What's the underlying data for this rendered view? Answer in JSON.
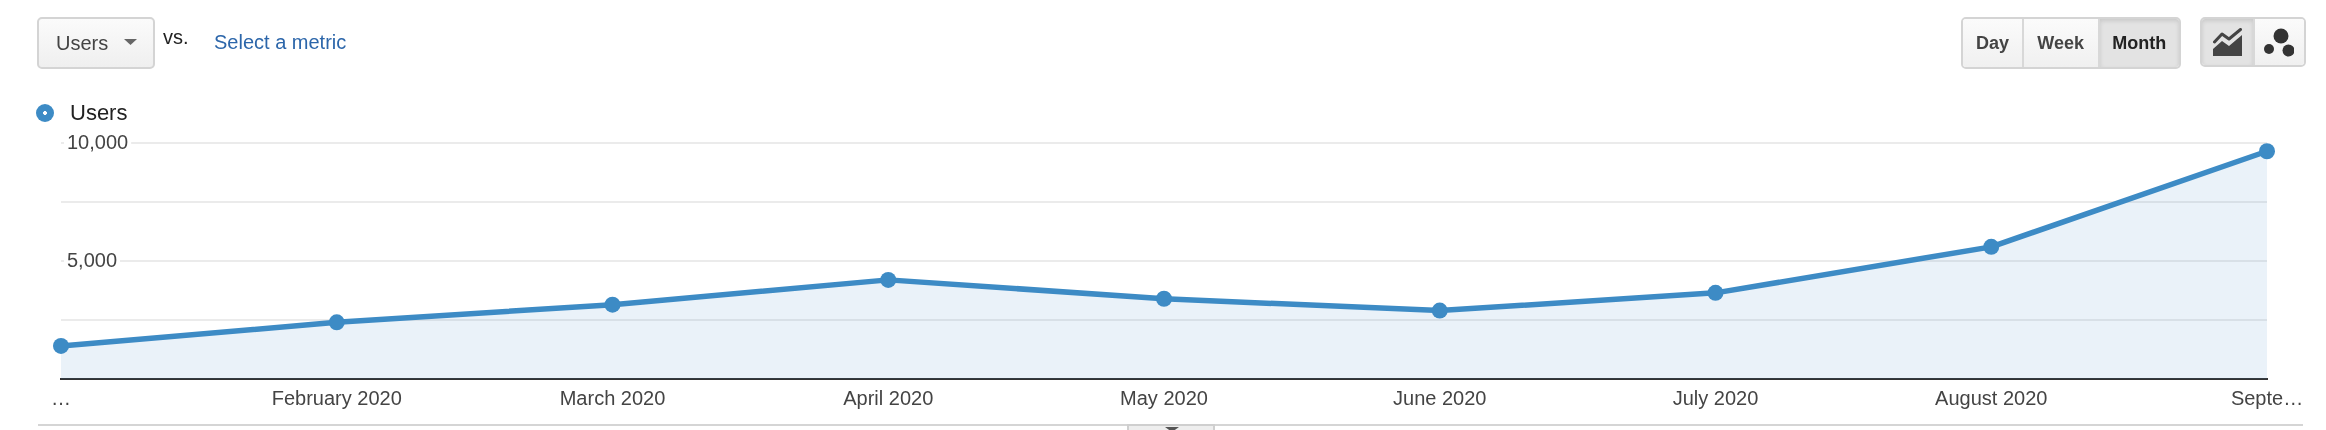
{
  "chart_data": {
    "type": "area",
    "categories": [
      "…",
      "February 2020",
      "March 2020",
      "April 2020",
      "May 2020",
      "June 2020",
      "July 2020",
      "August 2020",
      "Septe…"
    ],
    "series": [
      {
        "name": "Users",
        "color": "#3d8bc5",
        "values": [
          1400,
          2400,
          3150,
          4200,
          3400,
          2900,
          3650,
          5600,
          9650
        ]
      }
    ],
    "ylim": [
      0,
      10000
    ],
    "yticks": [
      {
        "value": 2500,
        "label": null
      },
      {
        "value": 5000,
        "label": "5,000"
      },
      {
        "value": 7500,
        "label": null
      },
      {
        "value": 10000,
        "label": "10,000"
      }
    ],
    "grid": "y",
    "legend": "top left",
    "marker": "circle",
    "annotations": [
      "Users",
      "vs.",
      "Select a metric",
      "Day",
      "Week",
      "Month"
    ]
  }
}
